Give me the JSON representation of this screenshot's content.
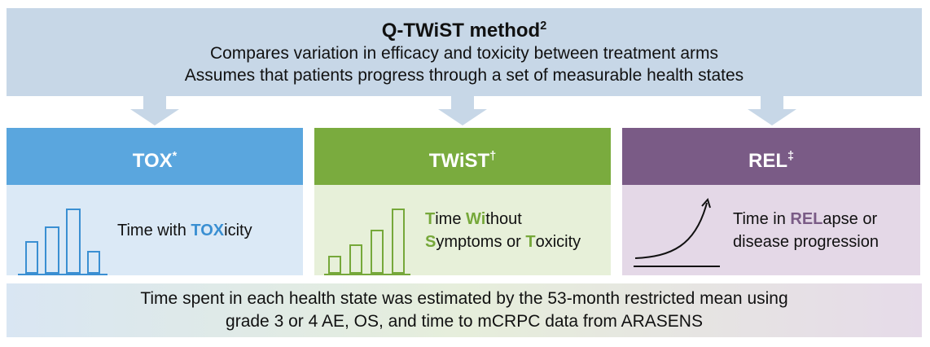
{
  "header": {
    "title": "Q-TWiST method",
    "title_sup": "2",
    "lines": [
      "Compares variation in efficacy and toxicity between treatment arms",
      "Assumes that patients progress through a set of measurable health states"
    ]
  },
  "states": [
    {
      "title": "TOX",
      "sup": "*",
      "color": "#5aa6de",
      "body_color": "#dbe9f6",
      "accent_color": "#3a8fd2",
      "lines": [
        [
          {
            "text": "Time with ",
            "accent": false
          },
          {
            "text": "TOX",
            "accent": true
          },
          {
            "text": "icity",
            "accent": false
          }
        ]
      ]
    },
    {
      "title": "TWiST",
      "sup": "†",
      "color": "#7aab3e",
      "body_color": "#e7f0d9",
      "accent_color": "#76a83a",
      "lines": [
        [
          {
            "text": "T",
            "accent": true
          },
          {
            "text": "ime ",
            "accent": false
          },
          {
            "text": "Wi",
            "accent": true
          },
          {
            "text": "thout",
            "accent": false
          }
        ],
        [
          {
            "text": "S",
            "accent": true
          },
          {
            "text": "ymptoms or ",
            "accent": false
          },
          {
            "text": "T",
            "accent": true
          },
          {
            "text": "oxicity",
            "accent": false
          }
        ]
      ]
    },
    {
      "title": "REL",
      "sup": "‡",
      "color": "#7a5b86",
      "body_color": "#e4d8e7",
      "accent_color": "#7a5b86",
      "lines": [
        [
          {
            "text": "Time in ",
            "accent": false
          },
          {
            "text": "REL",
            "accent": true
          },
          {
            "text": "apse or",
            "accent": false
          }
        ],
        [
          {
            "text": "disease progression",
            "accent": false
          }
        ]
      ]
    }
  ],
  "footer": {
    "lines": [
      "Time spent in each health state was estimated by the 53-month restricted mean using",
      "grade 3 or 4 AE, OS, and time to mCRPC data from ARASENS"
    ]
  }
}
